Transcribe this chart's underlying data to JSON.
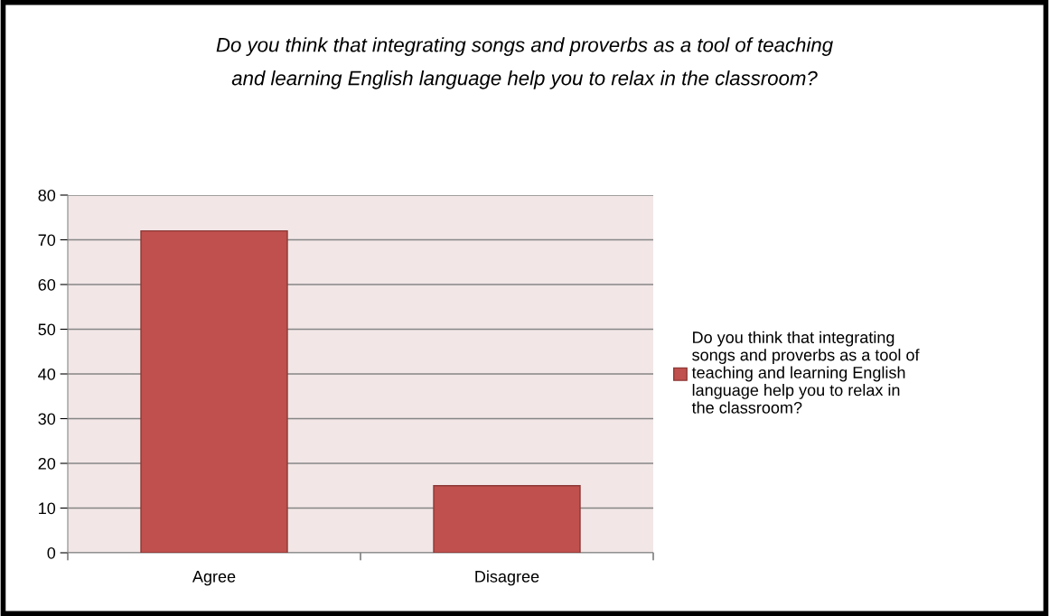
{
  "chart_data": {
    "type": "bar",
    "title": "Do you think that integrating songs and proverbs as a tool of teaching\nand learning English language help you to relax in the classroom?",
    "categories": [
      "Agree",
      "Disagree"
    ],
    "series": [
      {
        "name": "Do you think that integrating\nsongs and proverbs as a tool of\nteaching and learning English\nlanguage help you to relax in\nthe classroom?",
        "color": "#c0504d",
        "values": [
          72,
          15
        ]
      }
    ],
    "ylim": [
      0,
      80
    ],
    "yticks": [
      0,
      10,
      20,
      30,
      40,
      50,
      60,
      70,
      80
    ],
    "grid": "y",
    "legend": "right"
  }
}
